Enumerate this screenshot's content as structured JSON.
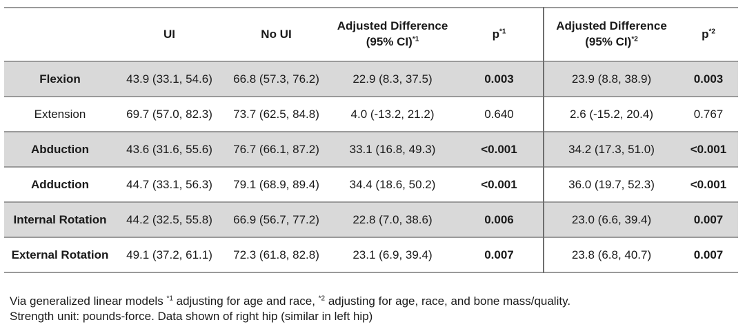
{
  "table": {
    "headers": {
      "label": "",
      "ui": "UI",
      "no_ui": "No UI",
      "adj1_line1": "Adjusted Difference",
      "adj1_line2": "(95% CI)",
      "adj1_sup": "*1",
      "p1": "p",
      "p1_sup": "*1",
      "adj2_line1": "Adjusted Difference",
      "adj2_line2": "(95% CI)",
      "adj2_sup": "*2",
      "p2": "p",
      "p2_sup": "*2"
    },
    "rows": [
      {
        "label": "Flexion",
        "ui": "43.9 (33.1, 54.6)",
        "no_ui": "66.8 (57.3, 76.2)",
        "adj1": "22.9 (8.3, 37.5)",
        "p1": "0.003",
        "adj2": "23.9 (8.8, 38.9)",
        "p2": "0.003"
      },
      {
        "label": "Extension",
        "ui": "69.7 (57.0, 82.3)",
        "no_ui": "73.7 (62.5, 84.8)",
        "adj1": "4.0 (-13.2, 21.2)",
        "p1": "0.640",
        "adj2": "2.6 (-15.2, 20.4)",
        "p2": "0.767"
      },
      {
        "label": "Abduction",
        "ui": "43.6 (31.6, 55.6)",
        "no_ui": "76.7 (66.1, 87.2)",
        "adj1": "33.1 (16.8, 49.3)",
        "p1": "<0.001",
        "adj2": "34.2 (17.3, 51.0)",
        "p2": "<0.001"
      },
      {
        "label": "Adduction",
        "ui": "44.7 (33.1, 56.3)",
        "no_ui": "79.1 (68.9, 89.4)",
        "adj1": "34.4 (18.6, 50.2)",
        "p1": "<0.001",
        "adj2": "36.0 (19.7, 52.3)",
        "p2": "<0.001"
      },
      {
        "label": "Internal Rotation",
        "ui": "44.2 (32.5, 55.8)",
        "no_ui": "66.9 (56.7, 77.2)",
        "adj1": "22.8 (7.0, 38.6)",
        "p1": "0.006",
        "adj2": "23.0 (6.6, 39.4)",
        "p2": "0.007"
      },
      {
        "label": "External Rotation",
        "ui": "49.1 (37.2, 61.1)",
        "no_ui": "72.3 (61.8, 82.8)",
        "adj1": "23.1 (6.9, 39.4)",
        "p1": "0.007",
        "adj2": "23.8 (6.8, 40.7)",
        "p2": "0.007"
      }
    ]
  },
  "notes": {
    "line1_a": "Via generalized linear models ",
    "line1_sup1": "*1",
    "line1_b": " adjusting for age and race, ",
    "line1_sup2": "*2",
    "line1_c": " adjusting for age, race, and bone mass/quality.",
    "line2": "Strength unit: pounds-force. Data shown of right hip (similar in left hip)"
  },
  "colors": {
    "shaded_row": "#d9d9d9",
    "rule": "#9a9a9a"
  }
}
